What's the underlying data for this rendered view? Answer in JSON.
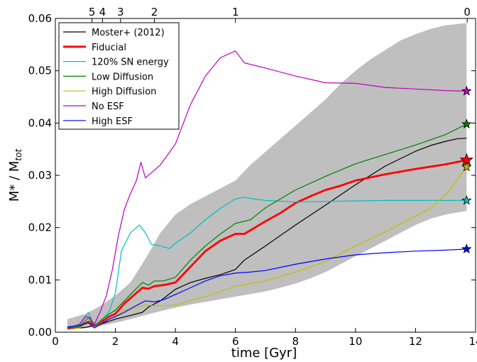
{
  "chart_data": {
    "type": "line",
    "xlabel": "time [Gyr]",
    "ylabel_main": "M* / M",
    "ylabel_sub": "tot",
    "xlim": [
      0,
      14
    ],
    "ylim": [
      0,
      0.06
    ],
    "x_ticks": [
      "0",
      "2",
      "4",
      "6",
      "8",
      "10",
      "12",
      "14"
    ],
    "x_tick_values": [
      0,
      2,
      4,
      6,
      8,
      10,
      12,
      14
    ],
    "y_ticks": [
      "0.00",
      "0.01",
      "0.02",
      "0.03",
      "0.04",
      "0.05",
      "0.06"
    ],
    "y_tick_values": [
      0,
      0.01,
      0.02,
      0.03,
      0.04,
      0.05,
      0.06
    ],
    "top_ticks": [
      {
        "label": "5",
        "x": 1.22
      },
      {
        "label": "4",
        "x": 1.57
      },
      {
        "label": "3",
        "x": 2.17
      },
      {
        "label": "2",
        "x": 3.3
      },
      {
        "label": "1",
        "x": 6.0
      },
      {
        "label": "0",
        "x": 13.72
      }
    ],
    "legend_position": "top-left",
    "band": {
      "color": "#bfbfbf",
      "x": [
        0.4,
        1,
        1.5,
        2,
        2.5,
        3,
        3.5,
        4,
        4.5,
        5,
        5.5,
        6,
        6.5,
        7,
        7.5,
        8,
        8.5,
        9,
        9.5,
        10,
        10.5,
        11,
        11.5,
        12,
        12.5,
        13,
        13.5,
        13.7
      ],
      "upper": [
        0.0025,
        0.0035,
        0.005,
        0.007,
        0.0095,
        0.014,
        0.019,
        0.0225,
        0.0245,
        0.026,
        0.0275,
        0.029,
        0.032,
        0.0345,
        0.037,
        0.0395,
        0.042,
        0.0445,
        0.0475,
        0.05,
        0.0522,
        0.054,
        0.0558,
        0.057,
        0.058,
        0.0587,
        0.059,
        0.0591
      ],
      "lower": [
        0.0005,
        0.0008,
        0.0012,
        0.0018,
        0.0025,
        0.0033,
        0.004,
        0.0047,
        0.0053,
        0.0058,
        0.0063,
        0.0068,
        0.0073,
        0.0078,
        0.0085,
        0.0093,
        0.0103,
        0.0115,
        0.013,
        0.0145,
        0.016,
        0.0175,
        0.019,
        0.0205,
        0.0217,
        0.0225,
        0.023,
        0.0232
      ]
    },
    "series": [
      {
        "name": "Moster+ (2012)",
        "color": "#000000",
        "width": 1.2,
        "star": false,
        "x": [
          0.4,
          1,
          1.5,
          2,
          2.5,
          2.9,
          3.1,
          3.5,
          4,
          4.5,
          5,
          5.5,
          6,
          6.3,
          7,
          8,
          9,
          10,
          11,
          12,
          12.5,
          13,
          13.4,
          13.7
        ],
        "y": [
          0.0006,
          0.0009,
          0.0015,
          0.0025,
          0.0032,
          0.0038,
          0.0048,
          0.006,
          0.0082,
          0.0095,
          0.0103,
          0.011,
          0.012,
          0.0138,
          0.0165,
          0.0205,
          0.0243,
          0.0282,
          0.0318,
          0.0346,
          0.0357,
          0.0365,
          0.037,
          0.0371
        ]
      },
      {
        "name": "Fiducial",
        "color": "#ff0000",
        "width": 2.8,
        "star": true,
        "x": [
          0.4,
          0.8,
          1.1,
          1.3,
          1.5,
          1.8,
          2,
          2.3,
          2.6,
          2.9,
          3.1,
          3.3,
          3.6,
          4,
          4.5,
          5,
          5.5,
          6,
          6.3,
          7,
          7.5,
          8,
          8.5,
          9,
          9.5,
          10,
          11,
          12,
          13,
          13.7
        ],
        "y": [
          0.0008,
          0.001,
          0.002,
          0.0012,
          0.0018,
          0.003,
          0.0035,
          0.0055,
          0.007,
          0.0085,
          0.0083,
          0.0088,
          0.009,
          0.0095,
          0.0125,
          0.0155,
          0.0175,
          0.0188,
          0.0188,
          0.0212,
          0.0228,
          0.0247,
          0.026,
          0.0272,
          0.028,
          0.029,
          0.0302,
          0.0312,
          0.0321,
          0.0329
        ]
      },
      {
        "name": "120% SN energy",
        "color": "#00bfbf",
        "width": 1.2,
        "star": true,
        "x": [
          0.4,
          0.8,
          1.1,
          1.3,
          1.5,
          1.8,
          2,
          2.2,
          2.5,
          2.8,
          3,
          3.2,
          3.5,
          3.8,
          4,
          4.5,
          5,
          5.5,
          6,
          6.3,
          6.6,
          7,
          8,
          9,
          10,
          11,
          12,
          13,
          13.7
        ],
        "y": [
          0.0008,
          0.0012,
          0.0038,
          0.0012,
          0.002,
          0.004,
          0.0075,
          0.0155,
          0.019,
          0.0205,
          0.019,
          0.0168,
          0.0165,
          0.016,
          0.017,
          0.019,
          0.0215,
          0.0237,
          0.0255,
          0.0258,
          0.0255,
          0.0252,
          0.0249,
          0.025,
          0.0251,
          0.0252,
          0.0252,
          0.0252,
          0.0252
        ]
      },
      {
        "name": "Low Diffusion",
        "color": "#008000",
        "width": 1.2,
        "star": true,
        "x": [
          0.4,
          0.8,
          1.1,
          1.3,
          1.5,
          1.8,
          2,
          2.3,
          2.6,
          2.9,
          3.1,
          3.3,
          3.6,
          4,
          4.5,
          5,
          5.5,
          6,
          6.5,
          7,
          8,
          9,
          10,
          11,
          12,
          13,
          13.7
        ],
        "y": [
          0.0008,
          0.001,
          0.0028,
          0.0012,
          0.0022,
          0.0035,
          0.0042,
          0.006,
          0.0078,
          0.0095,
          0.009,
          0.0098,
          0.0098,
          0.0105,
          0.0138,
          0.0165,
          0.0188,
          0.0208,
          0.0215,
          0.0238,
          0.0272,
          0.0298,
          0.0322,
          0.034,
          0.0358,
          0.0378,
          0.0398
        ]
      },
      {
        "name": "High Diffusion",
        "color": "#bfbf00",
        "width": 1.2,
        "star": true,
        "x": [
          0.4,
          0.8,
          1.1,
          1.3,
          1.5,
          1.8,
          2,
          2.3,
          2.6,
          3,
          3.5,
          4,
          4.5,
          5,
          5.5,
          6,
          6.5,
          7,
          8,
          9,
          10,
          11,
          12,
          12.5,
          13,
          13.3,
          13.7
        ],
        "y": [
          0.0005,
          0.0008,
          0.0018,
          0.0008,
          0.0015,
          0.0025,
          0.003,
          0.0042,
          0.0045,
          0.0052,
          0.005,
          0.0052,
          0.006,
          0.0068,
          0.0078,
          0.0088,
          0.0093,
          0.0098,
          0.0115,
          0.0135,
          0.0165,
          0.0192,
          0.0222,
          0.0237,
          0.0262,
          0.0285,
          0.0316
        ]
      },
      {
        "name": "No ESF",
        "color": "#bf00bf",
        "width": 1.2,
        "star": true,
        "x": [
          0.4,
          0.8,
          1,
          1.15,
          1.3,
          1.5,
          1.7,
          1.9,
          2.1,
          2.3,
          2.5,
          2.7,
          2.85,
          3,
          3.2,
          3.5,
          4,
          4.5,
          5,
          5.5,
          6,
          6.1,
          6.3,
          7,
          8,
          9,
          10,
          11,
          12,
          13,
          13.7
        ],
        "y": [
          0.0008,
          0.0015,
          0.003,
          0.0028,
          0.0015,
          0.004,
          0.007,
          0.012,
          0.0185,
          0.0235,
          0.0265,
          0.029,
          0.0325,
          0.0295,
          0.0305,
          0.032,
          0.036,
          0.0435,
          0.049,
          0.0525,
          0.0538,
          0.053,
          0.0515,
          0.0505,
          0.049,
          0.0477,
          0.0476,
          0.0468,
          0.0465,
          0.0462,
          0.0461
        ]
      },
      {
        "name": "High ESF",
        "color": "#0000ff",
        "width": 1.2,
        "star": true,
        "x": [
          0.4,
          0.8,
          1.1,
          1.3,
          1.5,
          1.8,
          2,
          2.3,
          2.6,
          3,
          3.3,
          3.6,
          4,
          4.5,
          5,
          5.5,
          6,
          6.5,
          7,
          8,
          9,
          10,
          11,
          12,
          13,
          13.7
        ],
        "y": [
          0.001,
          0.0013,
          0.0018,
          0.0008,
          0.0015,
          0.0025,
          0.003,
          0.0038,
          0.0048,
          0.006,
          0.0058,
          0.0062,
          0.0072,
          0.0085,
          0.0098,
          0.0108,
          0.0113,
          0.0115,
          0.0118,
          0.013,
          0.014,
          0.0148,
          0.0152,
          0.0155,
          0.0157,
          0.0159
        ]
      }
    ]
  }
}
